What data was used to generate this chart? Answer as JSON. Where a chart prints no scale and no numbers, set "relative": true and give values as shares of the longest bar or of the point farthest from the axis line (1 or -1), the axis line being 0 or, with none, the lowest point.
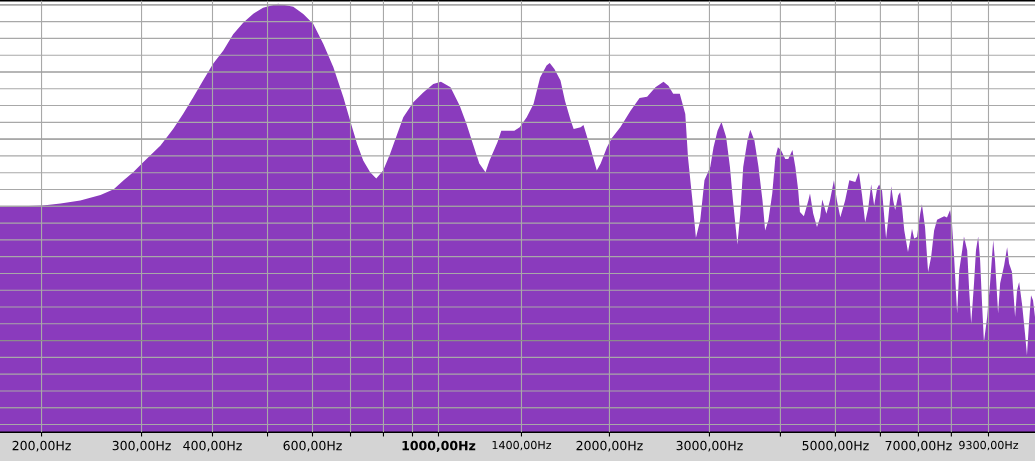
{
  "chart_data": {
    "type": "area",
    "relative": true,
    "log": "x",
    "grid": true,
    "color": "#8a3bbd",
    "xlim": [
      169,
      11230
    ],
    "xticks": [
      {
        "value": 200,
        "label": "200,00Hz"
      },
      {
        "value": 300,
        "label": "300,00Hz"
      },
      {
        "value": 400,
        "label": "400,00Hz"
      },
      {
        "value": 500,
        "label": null
      },
      {
        "value": 600,
        "label": "600,00Hz"
      },
      {
        "value": 700,
        "label": null
      },
      {
        "value": 800,
        "label": null
      },
      {
        "value": 900,
        "label": null
      },
      {
        "value": 1000,
        "label": "1000,00Hz"
      },
      {
        "value": 1400,
        "label": "1400,00Hz"
      },
      {
        "value": 2000,
        "label": "2000,00Hz"
      },
      {
        "value": 3000,
        "label": "3000,00Hz"
      },
      {
        "value": 4000,
        "label": null
      },
      {
        "value": 5000,
        "label": "5000,00Hz"
      },
      {
        "value": 6000,
        "label": null
      },
      {
        "value": 7000,
        "label": "7000,00Hz"
      },
      {
        "value": 8000,
        "label": null
      },
      {
        "value": 9300,
        "label": "9300,00Hz"
      }
    ],
    "x": [
      169,
      201,
      216,
      234,
      254,
      268,
      279,
      290,
      302,
      324,
      341,
      355,
      370,
      385,
      401,
      418,
      435,
      453,
      472,
      491,
      522,
      533,
      555,
      578,
      602,
      627,
      653,
      680,
      699,
      719,
      737,
      758,
      777,
      799,
      822,
      846,
      867,
      903,
      940,
      979,
      1010,
      1050,
      1090,
      1120,
      1150,
      1180,
      1210,
      1230,
      1270,
      1290,
      1360,
      1390,
      1430,
      1470,
      1510,
      1550,
      1570,
      1600,
      1640,
      1670,
      1710,
      1730,
      1780,
      1800,
      1850,
      1900,
      1930,
      1980,
      2020,
      2090,
      2180,
      2260,
      2330,
      2410,
      2490,
      2540,
      2590,
      2660,
      2720,
      2750,
      2800,
      2840,
      2890,
      2940,
      3010,
      3050,
      3100,
      3150,
      3210,
      3260,
      3300,
      3360,
      3400,
      3440,
      3500,
      3540,
      3600,
      3660,
      3720,
      3760,
      3810,
      3870,
      3920,
      3960,
      4010,
      4080,
      4130,
      4200,
      4250,
      4300,
      4330,
      4400,
      4480,
      4510,
      4570,
      4640,
      4700,
      4740,
      4820,
      4890,
      4970,
      5030,
      5100,
      5200,
      5290,
      5420,
      5500,
      5570,
      5640,
      5710,
      5780,
      5850,
      5920,
      5970,
      6040,
      6140,
      6190,
      6270,
      6320,
      6370,
      6450,
      6500,
      6550,
      6610,
      6710,
      6770,
      6820,
      6880,
      6960,
      7050,
      7100,
      7190,
      7280,
      7370,
      7460,
      7550,
      7770,
      7860,
      7960,
      8020,
      8090,
      8190,
      8260,
      8360,
      8420,
      8530,
      8600,
      8670,
      8770,
      8840,
      8920,
      8990,
      9060,
      9130,
      9250,
      9360,
      9480,
      9550,
      9670,
      9750,
      9910,
      10030,
      10110,
      10230,
      10360,
      10440,
      10530,
      10660,
      10790,
      10870,
      10960,
      11050,
      11140,
      11230
    ],
    "values": [
      0.526,
      0.529,
      0.534,
      0.541,
      0.554,
      0.567,
      0.588,
      0.607,
      0.63,
      0.669,
      0.708,
      0.743,
      0.782,
      0.821,
      0.86,
      0.891,
      0.929,
      0.956,
      0.977,
      0.991,
      1.0,
      0.998,
      0.993,
      0.976,
      0.953,
      0.906,
      0.852,
      0.782,
      0.727,
      0.673,
      0.634,
      0.607,
      0.592,
      0.611,
      0.65,
      0.696,
      0.735,
      0.77,
      0.793,
      0.813,
      0.818,
      0.805,
      0.762,
      0.72,
      0.673,
      0.627,
      0.607,
      0.634,
      0.677,
      0.704,
      0.704,
      0.712,
      0.735,
      0.766,
      0.828,
      0.856,
      0.862,
      0.848,
      0.821,
      0.774,
      0.727,
      0.708,
      0.712,
      0.717,
      0.665,
      0.611,
      0.627,
      0.665,
      0.687,
      0.712,
      0.751,
      0.78,
      0.783,
      0.805,
      0.818,
      0.809,
      0.79,
      0.79,
      0.743,
      0.642,
      0.541,
      0.454,
      0.495,
      0.588,
      0.619,
      0.665,
      0.704,
      0.724,
      0.689,
      0.619,
      0.541,
      0.438,
      0.51,
      0.619,
      0.681,
      0.706,
      0.681,
      0.619,
      0.541,
      0.471,
      0.495,
      0.557,
      0.642,
      0.665,
      0.658,
      0.638,
      0.638,
      0.659,
      0.619,
      0.564,
      0.514,
      0.504,
      0.541,
      0.557,
      0.51,
      0.479,
      0.502,
      0.543,
      0.51,
      0.541,
      0.588,
      0.541,
      0.502,
      0.541,
      0.588,
      0.584,
      0.607,
      0.553,
      0.49,
      0.522,
      0.578,
      0.529,
      0.569,
      0.578,
      0.564,
      0.452,
      0.495,
      0.574,
      0.541,
      0.519,
      0.553,
      0.56,
      0.526,
      0.471,
      0.421,
      0.448,
      0.475,
      0.452,
      0.456,
      0.51,
      0.532,
      0.479,
      0.374,
      0.409,
      0.471,
      0.496,
      0.504,
      0.501,
      0.519,
      0.488,
      0.409,
      0.277,
      0.378,
      0.425,
      0.457,
      0.425,
      0.331,
      0.254,
      0.348,
      0.425,
      0.457,
      0.401,
      0.301,
      0.211,
      0.269,
      0.348,
      0.448,
      0.401,
      0.277,
      0.348,
      0.39,
      0.432,
      0.394,
      0.374,
      0.269,
      0.331,
      0.351,
      0.297,
      0.227,
      0.18,
      0.255,
      0.32,
      0.308,
      0.269
    ]
  }
}
